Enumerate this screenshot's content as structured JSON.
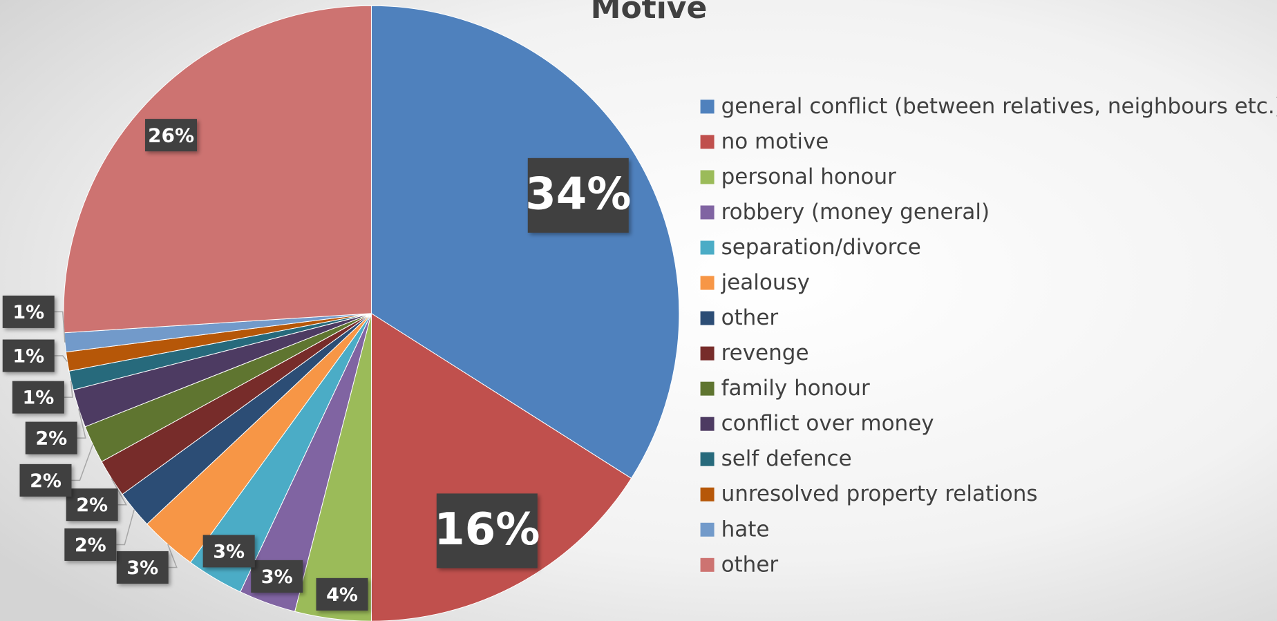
{
  "chart_data": {
    "type": "pie",
    "title": "Motive",
    "categories": [
      "general conflict (between relatives, neighbours etc.)",
      "no motive",
      "personal honour",
      "robbery (money general)",
      "separation/divorce",
      "jealousy",
      "other",
      "revenge",
      "family honour",
      "conflict over money",
      "self defence",
      "unresolved property relations",
      "hate",
      "other"
    ],
    "values": [
      34,
      16,
      4,
      3,
      3,
      3,
      2,
      2,
      2,
      2,
      1,
      1,
      1,
      26
    ],
    "value_labels": [
      "34%",
      "16%",
      "4%",
      "3%",
      "3%",
      "3%",
      "2%",
      "2%",
      "2%",
      "2%",
      "1%",
      "1%",
      "1%",
      "26%"
    ],
    "colors": [
      "#4f81bd",
      "#c0504d",
      "#9bbb59",
      "#8064a2",
      "#4bacc6",
      "#f79646",
      "#2c4d75",
      "#772c2a",
      "#5f7530",
      "#4d3b62",
      "#276a7c",
      "#b65708",
      "#729aca",
      "#cd7371"
    ],
    "legend": "right"
  }
}
